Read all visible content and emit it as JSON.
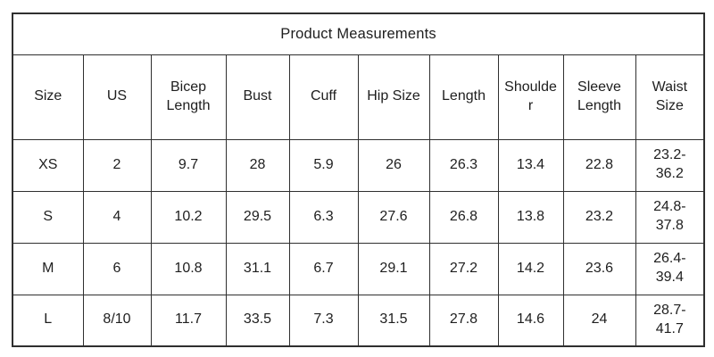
{
  "table": {
    "title": "Product Measurements",
    "columns": [
      "Size",
      "US",
      "Bicep Length",
      "Bust",
      "Cuff",
      "Hip Size",
      "Length",
      "Shoulder",
      "Sleeve Length",
      "Waist Size"
    ],
    "rows": [
      [
        "XS",
        "2",
        "9.7",
        "28",
        "5.9",
        "26",
        "26.3",
        "13.4",
        "22.8",
        "23.2-36.2"
      ],
      [
        "S",
        "4",
        "10.2",
        "29.5",
        "6.3",
        "27.6",
        "26.8",
        "13.8",
        "23.2",
        "24.8-37.8"
      ],
      [
        "M",
        "6",
        "10.8",
        "31.1",
        "6.7",
        "29.1",
        "27.2",
        "14.2",
        "23.6",
        "26.4-39.4"
      ],
      [
        "L",
        "8/10",
        "11.7",
        "33.5",
        "7.3",
        "31.5",
        "27.8",
        "14.6",
        "24",
        "28.7-41.7"
      ]
    ],
    "colors": {
      "border": "#2f2f2f",
      "text": "#1e1e1e",
      "background": "#ffffff"
    }
  }
}
